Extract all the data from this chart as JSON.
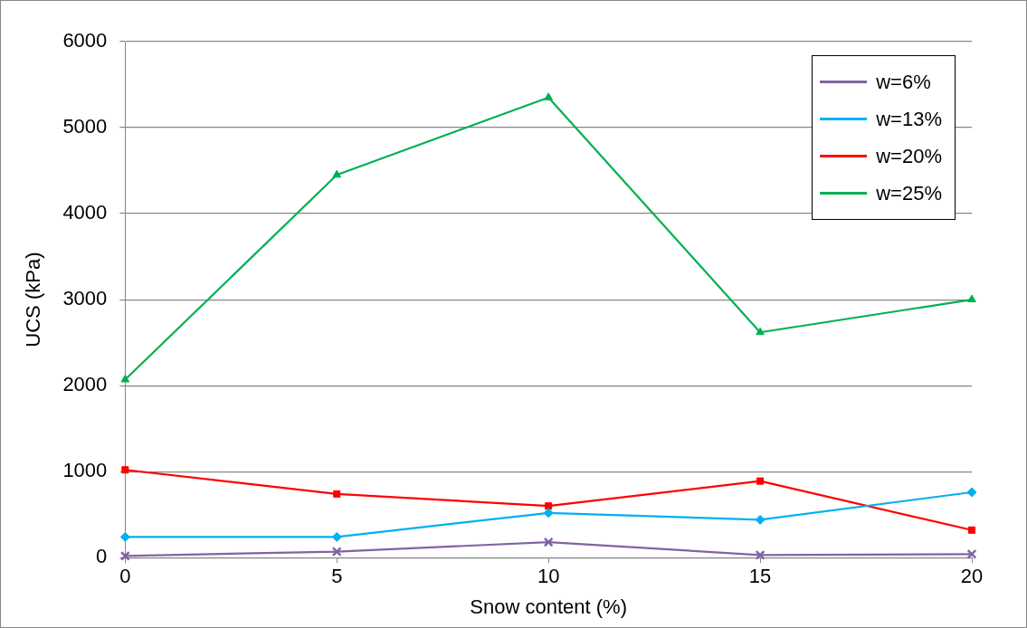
{
  "chart_data": {
    "type": "line",
    "xlabel": "Snow content (%)",
    "ylabel": "UCS (kPa)",
    "x": [
      0,
      5,
      10,
      15,
      20
    ],
    "xlim": [
      0,
      20
    ],
    "xticks": [
      0,
      5,
      10,
      15,
      20
    ],
    "ylim": [
      0,
      6000
    ],
    "yticks": [
      0,
      1000,
      2000,
      3000,
      4000,
      5000,
      6000
    ],
    "grid": "y",
    "legend": "top right",
    "line_style": "solid",
    "series": [
      {
        "name": "w=6%",
        "color": "#8064a2",
        "marker": "cross",
        "values": [
          20,
          70,
          180,
          30,
          40
        ]
      },
      {
        "name": "w=13%",
        "color": "#00b0f0",
        "marker": "diamond",
        "values": [
          240,
          240,
          520,
          440,
          760
        ]
      },
      {
        "name": "w=20%",
        "color": "#ff0000",
        "marker": "square",
        "values": [
          1020,
          740,
          600,
          890,
          320
        ]
      },
      {
        "name": "w=25%",
        "color": "#00b050",
        "marker": "triangle",
        "values": [
          2070,
          4450,
          5350,
          2620,
          3000
        ]
      }
    ]
  }
}
